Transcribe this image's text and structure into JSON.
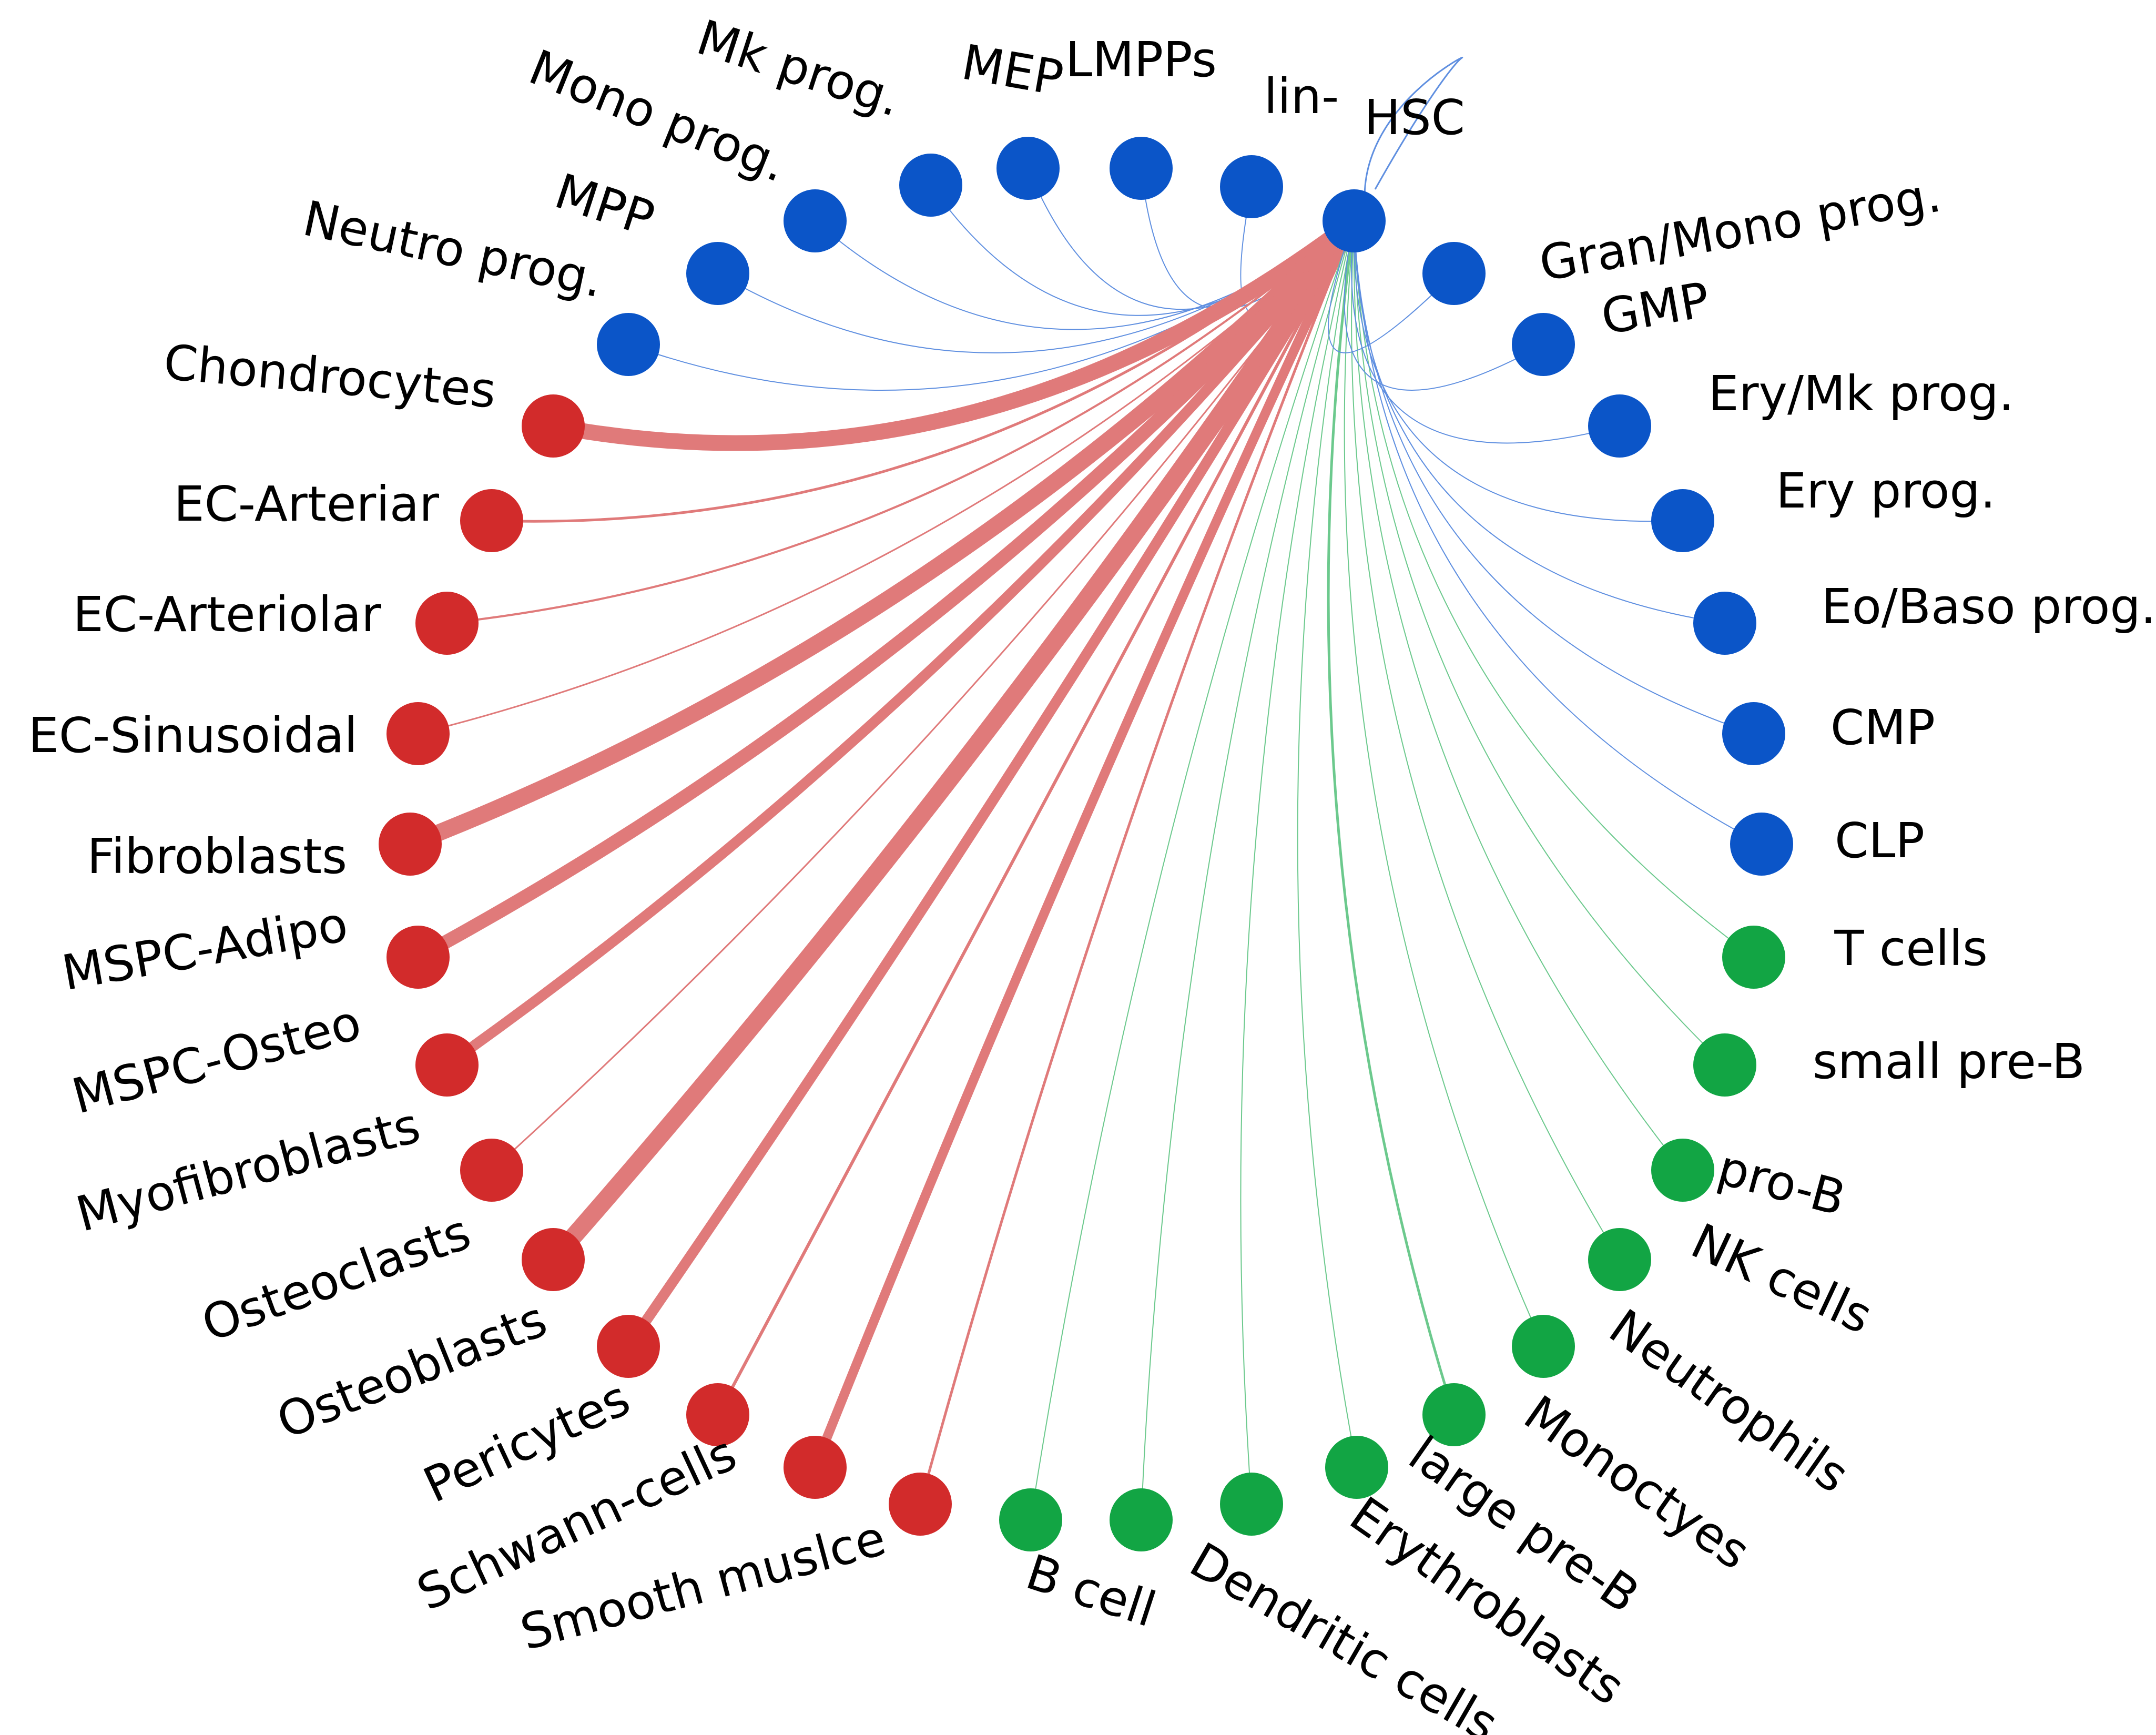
{
  "colors": {
    "blue": "#0b55c8",
    "red": "#d22b2b",
    "green": "#12a544",
    "edge_blue": "#5f8fe0",
    "edge_red": "#e07a7a",
    "edge_green": "#6cc98d"
  },
  "hub": "HSC",
  "nodes": [
    {
      "id": "lin",
      "label": "lin-",
      "group": "blue",
      "weight": 2
    },
    {
      "id": "lmpps",
      "label": "LMPPs",
      "group": "blue",
      "weight": 2
    },
    {
      "id": "mep",
      "label": "MEP",
      "group": "blue",
      "weight": 2
    },
    {
      "id": "mkprog",
      "label": "Mk prog.",
      "group": "blue",
      "weight": 2
    },
    {
      "id": "monoprog",
      "label": "Mono prog.",
      "group": "blue",
      "weight": 2
    },
    {
      "id": "mpp",
      "label": "MPP",
      "group": "blue",
      "weight": 2
    },
    {
      "id": "neutroprog",
      "label": "Neutro prog.",
      "group": "blue",
      "weight": 2
    },
    {
      "id": "chondro",
      "label": "Chondrocytes",
      "group": "red",
      "weight": 30
    },
    {
      "id": "ecart",
      "label": "EC-Arteriar",
      "group": "red",
      "weight": 5
    },
    {
      "id": "ecarteriolar",
      "label": "EC-Arteriolar",
      "group": "red",
      "weight": 4
    },
    {
      "id": "ecsin",
      "label": "EC-Sinusoidal",
      "group": "red",
      "weight": 3
    },
    {
      "id": "fibro",
      "label": "Fibroblasts",
      "group": "red",
      "weight": 32
    },
    {
      "id": "mspcadipo",
      "label": "MSPC-Adipo",
      "group": "red",
      "weight": 26
    },
    {
      "id": "mspcosteo",
      "label": "MSPC-Osteo",
      "group": "red",
      "weight": 20
    },
    {
      "id": "myofibro",
      "label": "Myofibroblasts",
      "group": "red",
      "weight": 3
    },
    {
      "id": "osteoclasts",
      "label": "Osteoclasts",
      "group": "red",
      "weight": 34
    },
    {
      "id": "osteoblasts",
      "label": "Osteoblasts",
      "group": "red",
      "weight": 20
    },
    {
      "id": "pericytes",
      "label": "Pericytes",
      "group": "red",
      "weight": 6
    },
    {
      "id": "schwann",
      "label": "Schwann-cells",
      "group": "red",
      "weight": 18
    },
    {
      "id": "smooth",
      "label": "Smooth muslce",
      "group": "red",
      "weight": 5
    },
    {
      "id": "bcell",
      "label": "B cell",
      "group": "green",
      "weight": 2
    },
    {
      "id": "dendritic",
      "label": "Dendritic cells",
      "group": "green",
      "weight": 2
    },
    {
      "id": "erythroblasts",
      "label": "Erythroblasts",
      "group": "green",
      "weight": 2
    },
    {
      "id": "largepreb",
      "label": "large pre-B",
      "group": "green",
      "weight": 2
    },
    {
      "id": "monoctyes",
      "label": "Monoctyes",
      "group": "green",
      "weight": 5
    },
    {
      "id": "neutrophils",
      "label": "Neutrophils",
      "group": "green",
      "weight": 2
    },
    {
      "id": "nkcells",
      "label": "NK cells",
      "group": "green",
      "weight": 2
    },
    {
      "id": "prob",
      "label": "pro-B",
      "group": "green",
      "weight": 2
    },
    {
      "id": "smallpreb",
      "label": "small pre-B",
      "group": "green",
      "weight": 2
    },
    {
      "id": "tcells",
      "label": "T cells",
      "group": "green",
      "weight": 2
    },
    {
      "id": "clp",
      "label": "CLP",
      "group": "blue",
      "weight": 2
    },
    {
      "id": "cmp",
      "label": "CMP",
      "group": "blue",
      "weight": 2
    },
    {
      "id": "eobaso",
      "label": "Eo/Baso prog.",
      "group": "blue",
      "weight": 2
    },
    {
      "id": "eryprog",
      "label": "Ery prog.",
      "group": "blue",
      "weight": 2
    },
    {
      "id": "erymk",
      "label": "Ery/Mk prog.",
      "group": "blue",
      "weight": 2
    },
    {
      "id": "gmp",
      "label": "GMP",
      "group": "blue",
      "weight": 2
    },
    {
      "id": "granmono",
      "label": "Gran/Mono prog.",
      "group": "blue",
      "weight": 2
    }
  ]
}
